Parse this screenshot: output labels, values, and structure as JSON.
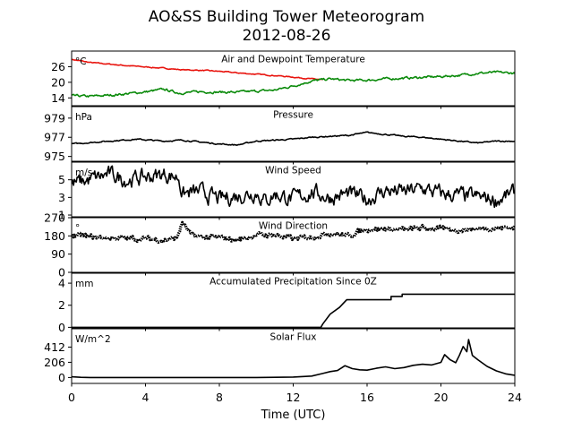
{
  "title": "AO&SS Building Tower Meteorogram",
  "subtitle": "2012-08-26",
  "xlabel": "Time (UTC)",
  "x_range": [
    0,
    24
  ],
  "x_ticks": [
    0,
    4,
    8,
    12,
    16,
    20,
    24
  ],
  "colors": {
    "temperature": "#e8140e",
    "dewpoint": "#0a8a0a",
    "default": "#000000"
  },
  "chart_data": [
    {
      "type": "line",
      "title": "Air and Dewpoint Temperature",
      "unit": "°C",
      "ylim": [
        11,
        32
      ],
      "yticks": [
        14,
        20,
        26
      ],
      "series": [
        {
          "color_key": "temperature",
          "noise": 0.15,
          "points": [
            [
              0,
              28.8
            ],
            [
              1,
              27.6
            ],
            [
              2,
              27.0
            ],
            [
              3,
              26.4
            ],
            [
              4,
              25.9
            ],
            [
              5,
              25.4
            ],
            [
              6,
              24.8
            ],
            [
              7,
              24.6
            ],
            [
              8,
              24.2
            ],
            [
              9,
              23.6
            ],
            [
              10,
              23.1
            ],
            [
              11,
              22.6
            ],
            [
              12,
              22.0
            ],
            [
              13,
              21.3
            ],
            [
              13.6,
              21.0
            ]
          ]
        },
        {
          "color_key": "dewpoint",
          "noise": 0.35,
          "points": [
            [
              0,
              14.8
            ],
            [
              1,
              14.6
            ],
            [
              2,
              15.0
            ],
            [
              3,
              15.6
            ],
            [
              4,
              16.3
            ],
            [
              5,
              17.3
            ],
            [
              5.8,
              15.9
            ],
            [
              6.2,
              16.0
            ],
            [
              7,
              16.4
            ],
            [
              8,
              16.2
            ],
            [
              9,
              16.2
            ],
            [
              10,
              16.6
            ],
            [
              11,
              17.0
            ],
            [
              12,
              18.6
            ],
            [
              13,
              20.5
            ],
            [
              14,
              21.3
            ],
            [
              15,
              20.7
            ],
            [
              16,
              20.8
            ],
            [
              17,
              21.3
            ],
            [
              18,
              21.6
            ],
            [
              19,
              21.9
            ],
            [
              20,
              22.2
            ],
            [
              21,
              22.7
            ],
            [
              22,
              23.5
            ],
            [
              23,
              23.8
            ],
            [
              24,
              23.5
            ]
          ]
        }
      ]
    },
    {
      "type": "line",
      "title": "Pressure",
      "unit": "hPa",
      "ylim": [
        974.5,
        980.2
      ],
      "yticks": [
        975,
        977,
        979
      ],
      "series": [
        {
          "color_key": "default",
          "noise": 0.05,
          "points": [
            [
              0,
              976.3
            ],
            [
              2,
              976.6
            ],
            [
              3.5,
              976.8
            ],
            [
              5,
              976.6
            ],
            [
              6,
              976.7
            ],
            [
              7,
              976.5
            ],
            [
              8,
              976.3
            ],
            [
              9,
              976.2
            ],
            [
              10,
              976.6
            ],
            [
              11,
              976.7
            ],
            [
              12,
              976.8
            ],
            [
              13,
              977.0
            ],
            [
              14,
              977.1
            ],
            [
              15,
              977.2
            ],
            [
              16,
              977.5
            ],
            [
              17,
              977.3
            ],
            [
              18,
              977.1
            ],
            [
              19,
              977.0
            ],
            [
              20,
              976.8
            ],
            [
              21,
              976.6
            ],
            [
              22,
              976.4
            ],
            [
              23,
              976.6
            ],
            [
              24,
              976.6
            ]
          ]
        }
      ]
    },
    {
      "type": "line",
      "title": "Wind Speed",
      "unit": "m/s",
      "ylim": [
        0.8,
        7.0
      ],
      "yticks": [
        1,
        3,
        5
      ],
      "series": [
        {
          "color_key": "default",
          "noise": 0.7,
          "points": [
            [
              0,
              4.5
            ],
            [
              1,
              5.0
            ],
            [
              2,
              5.6
            ],
            [
              3,
              5.0
            ],
            [
              4,
              5.3
            ],
            [
              5,
              5.6
            ],
            [
              5.8,
              5.3
            ],
            [
              6,
              3.4
            ],
            [
              7,
              3.6
            ],
            [
              8,
              2.8
            ],
            [
              9,
              3.2
            ],
            [
              10,
              3.6
            ],
            [
              10.5,
              2.6
            ],
            [
              11,
              3.4
            ],
            [
              12,
              2.8
            ],
            [
              13,
              3.6
            ],
            [
              14,
              3.0
            ],
            [
              15,
              3.4
            ],
            [
              16,
              2.8
            ],
            [
              17,
              3.8
            ],
            [
              18,
              3.6
            ],
            [
              19,
              4.0
            ],
            [
              20,
              3.4
            ],
            [
              21,
              3.2
            ],
            [
              22,
              3.0
            ],
            [
              23,
              2.7
            ],
            [
              24,
              3.5
            ]
          ]
        }
      ]
    },
    {
      "type": "scatter",
      "title": "Wind Direction",
      "unit": "°",
      "ylim": [
        0,
        270
      ],
      "yticks": [
        0,
        90,
        180,
        270
      ],
      "series": [
        {
          "color_key": "default",
          "noise": 9,
          "points": [
            [
              0,
              185
            ],
            [
              1,
              175
            ],
            [
              2,
              170
            ],
            [
              3,
              168
            ],
            [
              4,
              166
            ],
            [
              5,
              160
            ],
            [
              5.7,
              170
            ],
            [
              6,
              245
            ],
            [
              6.5,
              180
            ],
            [
              7,
              175
            ],
            [
              8,
              170
            ],
            [
              9,
              160
            ],
            [
              10,
              185
            ],
            [
              11,
              185
            ],
            [
              12,
              165
            ],
            [
              13,
              175
            ],
            [
              14,
              195
            ],
            [
              15,
              180
            ],
            [
              15.5,
              200
            ],
            [
              16,
              215
            ],
            [
              17,
              215
            ],
            [
              18,
              210
            ],
            [
              19,
              220
            ],
            [
              20,
              215
            ],
            [
              21,
              210
            ],
            [
              22,
              215
            ],
            [
              23,
              220
            ],
            [
              24,
              222
            ]
          ]
        }
      ]
    },
    {
      "type": "line",
      "title": "Accumulated Precipitation Since 0Z",
      "unit": "mm",
      "ylim": [
        -0.05,
        4.9
      ],
      "yticks": [
        0,
        2,
        4
      ],
      "series": [
        {
          "color_key": "default",
          "noise": 0,
          "points": [
            [
              0,
              0
            ],
            [
              13.5,
              0
            ],
            [
              13.6,
              0.3
            ],
            [
              14,
              1.2
            ],
            [
              14.5,
              1.8
            ],
            [
              14.9,
              2.5
            ],
            [
              17.3,
              2.5
            ],
            [
              17.3,
              2.8
            ],
            [
              17.9,
              2.8
            ],
            [
              17.9,
              3.0
            ],
            [
              24,
              3.0
            ]
          ]
        }
      ]
    },
    {
      "type": "line",
      "title": "Solar Flux",
      "unit": "W/m^2",
      "ylim": [
        -80,
        660
      ],
      "yticks": [
        0,
        206,
        412
      ],
      "series": [
        {
          "color_key": "default",
          "noise": 0,
          "points": [
            [
              0,
              10
            ],
            [
              0.5,
              2
            ],
            [
              1,
              0
            ],
            [
              5,
              0
            ],
            [
              10,
              0
            ],
            [
              11,
              2
            ],
            [
              12,
              6
            ],
            [
              13,
              20
            ],
            [
              13.6,
              55
            ],
            [
              14,
              80
            ],
            [
              14.4,
              95
            ],
            [
              14.8,
              160
            ],
            [
              15.2,
              120
            ],
            [
              15.6,
              105
            ],
            [
              16,
              100
            ],
            [
              16.5,
              125
            ],
            [
              17,
              145
            ],
            [
              17.5,
              120
            ],
            [
              18,
              135
            ],
            [
              18.5,
              165
            ],
            [
              19,
              180
            ],
            [
              19.5,
              170
            ],
            [
              20,
              205
            ],
            [
              20.2,
              310
            ],
            [
              20.5,
              240
            ],
            [
              20.8,
              200
            ],
            [
              21,
              300
            ],
            [
              21.2,
              420
            ],
            [
              21.4,
              350
            ],
            [
              21.5,
              515
            ],
            [
              21.7,
              300
            ],
            [
              22,
              240
            ],
            [
              22.5,
              150
            ],
            [
              23,
              90
            ],
            [
              23.5,
              50
            ],
            [
              24,
              30
            ]
          ]
        }
      ]
    }
  ]
}
